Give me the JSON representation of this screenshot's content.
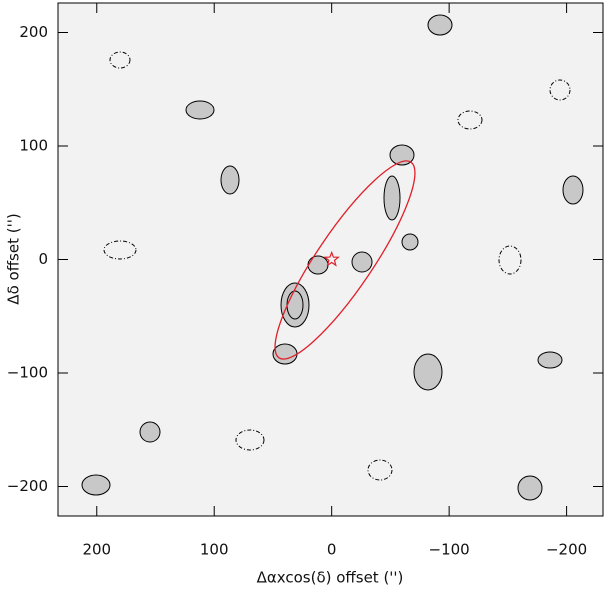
{
  "chart_data": {
    "type": "contour",
    "xlabel": "Δαxcos(δ) offset ('')",
    "ylabel": "Δδ offset ('')",
    "xlim": [
      233,
      -231
    ],
    "ylim": [
      -226,
      226
    ],
    "xticks": [
      200,
      100,
      0,
      {
        "value": -100,
        "label": "−100"
      },
      {
        "value": -200,
        "label": "−200"
      }
    ],
    "yticks": [
      {
        "value": -200,
        "label": "−200"
      },
      {
        "value": -100,
        "label": "−100"
      },
      0,
      100,
      200
    ],
    "marker": {
      "x": 0,
      "y": 0,
      "color": "#e0202a"
    }
  }
}
